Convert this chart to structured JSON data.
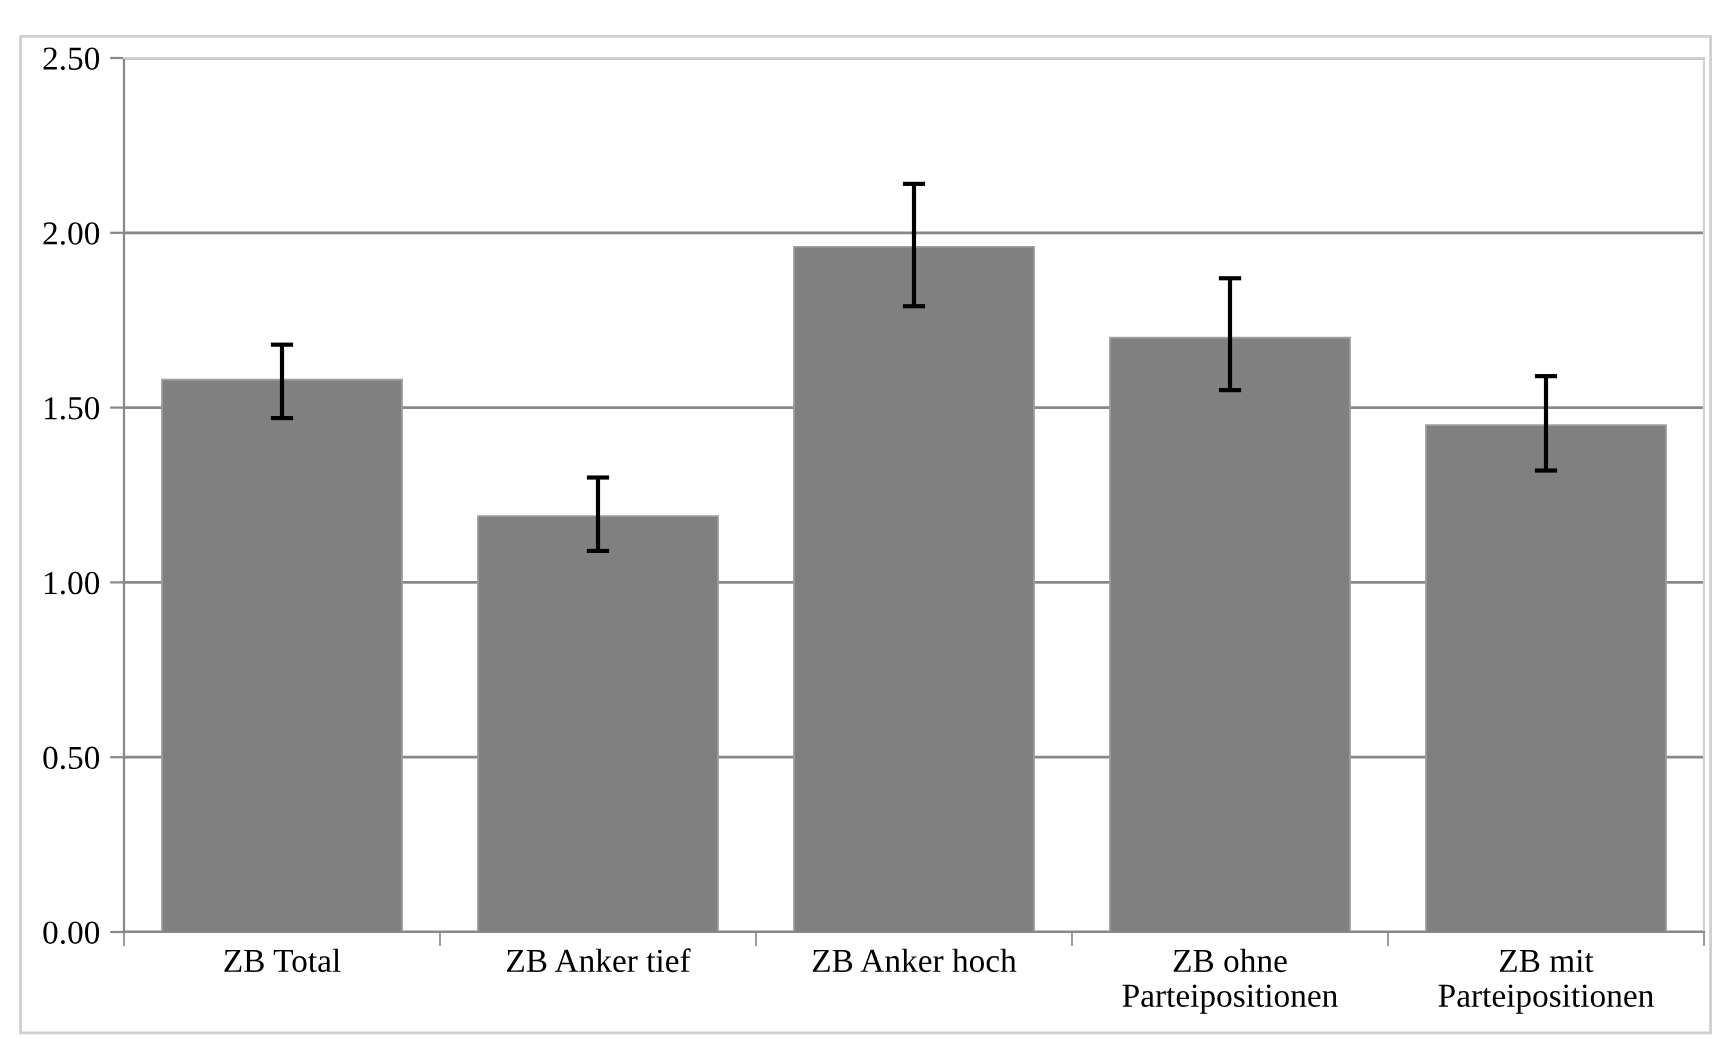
{
  "chart_data": {
    "type": "bar",
    "categories": [
      "ZB Total",
      "ZB Anker tief",
      "ZB Anker hoch",
      "ZB ohne Parteipositionen",
      "ZB mit Parteipositionen"
    ],
    "values": [
      1.58,
      1.19,
      1.96,
      1.7,
      1.45
    ],
    "errors": [
      [
        1.47,
        1.68
      ],
      [
        1.09,
        1.3
      ],
      [
        1.79,
        2.14
      ],
      [
        1.55,
        1.87
      ],
      [
        1.32,
        1.59
      ]
    ],
    "color": "#808080",
    "ylim": [
      0,
      2.5
    ],
    "yticks": [
      {
        "value": 0,
        "label": "0.00"
      },
      {
        "value": 0.5,
        "label": "0.50"
      },
      {
        "value": 1,
        "label": "1.00"
      },
      {
        "value": 1.5,
        "label": "1.50"
      },
      {
        "value": 2,
        "label": "2.00"
      },
      {
        "value": 2.5,
        "label": "2.50"
      }
    ],
    "grid": "y"
  }
}
